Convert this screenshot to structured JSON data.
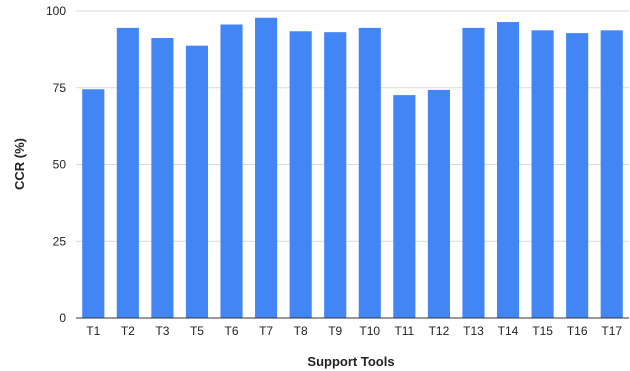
{
  "chart_data": {
    "type": "bar",
    "title": "",
    "xlabel": "Support Tools",
    "ylabel": "CCR (%)",
    "ylim": [
      0,
      100
    ],
    "yticks": [
      "0",
      "25",
      "50",
      "75",
      "100"
    ],
    "grid": true,
    "legend": "none",
    "categories": [
      "T1",
      "T2",
      "T3",
      "T5",
      "T6",
      "T7",
      "T8",
      "T9",
      "T10",
      "T11",
      "T12",
      "T13",
      "T14",
      "T15",
      "T16",
      "T17"
    ],
    "series": [
      {
        "values": [
          74.5,
          94.5,
          91.2,
          88.7,
          95.6,
          97.8,
          93.4,
          93.1,
          94.5,
          72.6,
          74.3,
          94.5,
          96.4,
          93.7,
          92.8,
          93.7
        ]
      }
    ],
    "colors": {
      "bar": "#4285f4",
      "grid": "#d9d9d9",
      "axis": "#333333",
      "text": "#222222"
    }
  }
}
